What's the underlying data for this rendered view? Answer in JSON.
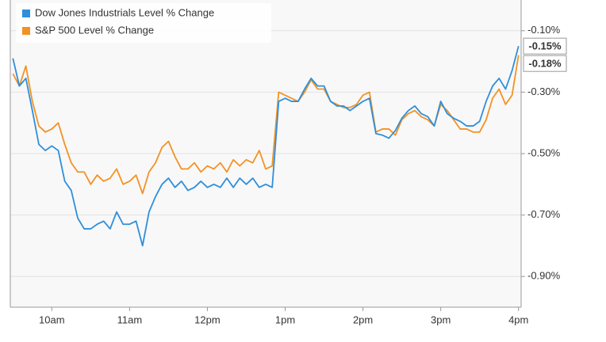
{
  "chart_data": {
    "type": "line",
    "series": [
      {
        "name": "Dow Jones Industrials Level % Change",
        "color": "#2e8fdc",
        "end_label": "-0.15%",
        "values": [
          -0.19,
          -0.28,
          -0.255,
          -0.36,
          -0.47,
          -0.49,
          -0.475,
          -0.49,
          -0.59,
          -0.62,
          -0.71,
          -0.745,
          -0.745,
          -0.73,
          -0.72,
          -0.745,
          -0.69,
          -0.73,
          -0.73,
          -0.72,
          -0.8,
          -0.69,
          -0.64,
          -0.6,
          -0.58,
          -0.61,
          -0.59,
          -0.62,
          -0.61,
          -0.59,
          -0.61,
          -0.6,
          -0.61,
          -0.58,
          -0.61,
          -0.58,
          -0.6,
          -0.58,
          -0.61,
          -0.6,
          -0.61,
          -0.33,
          -0.32,
          -0.33,
          -0.33,
          -0.29,
          -0.255,
          -0.28,
          -0.28,
          -0.33,
          -0.345,
          -0.345,
          -0.36,
          -0.345,
          -0.33,
          -0.32,
          -0.435,
          -0.44,
          -0.45,
          -0.425,
          -0.385,
          -0.36,
          -0.345,
          -0.37,
          -0.38,
          -0.41,
          -0.33,
          -0.37,
          -0.385,
          -0.395,
          -0.41,
          -0.41,
          -0.395,
          -0.33,
          -0.28,
          -0.255,
          -0.29,
          -0.23,
          -0.15
        ]
      },
      {
        "name": "S&P 500 Level % Change",
        "color": "#f39224",
        "end_label": "-0.18%",
        "values": [
          -0.24,
          -0.28,
          -0.215,
          -0.33,
          -0.41,
          -0.43,
          -0.42,
          -0.4,
          -0.47,
          -0.53,
          -0.56,
          -0.56,
          -0.6,
          -0.57,
          -0.59,
          -0.58,
          -0.55,
          -0.6,
          -0.59,
          -0.57,
          -0.63,
          -0.56,
          -0.53,
          -0.48,
          -0.46,
          -0.51,
          -0.55,
          -0.55,
          -0.53,
          -0.56,
          -0.54,
          -0.55,
          -0.53,
          -0.56,
          -0.52,
          -0.54,
          -0.52,
          -0.53,
          -0.49,
          -0.55,
          -0.54,
          -0.3,
          -0.31,
          -0.32,
          -0.33,
          -0.3,
          -0.26,
          -0.29,
          -0.29,
          -0.33,
          -0.34,
          -0.35,
          -0.35,
          -0.34,
          -0.31,
          -0.3,
          -0.43,
          -0.42,
          -0.42,
          -0.44,
          -0.39,
          -0.37,
          -0.36,
          -0.38,
          -0.39,
          -0.41,
          -0.34,
          -0.36,
          -0.39,
          -0.42,
          -0.42,
          -0.43,
          -0.43,
          -0.39,
          -0.32,
          -0.29,
          -0.34,
          -0.31,
          -0.18
        ]
      }
    ],
    "x": [
      570,
      575,
      580,
      585,
      590,
      595,
      600,
      605,
      610,
      615,
      620,
      625,
      630,
      635,
      640,
      645,
      650,
      655,
      660,
      665,
      670,
      675,
      680,
      685,
      690,
      695,
      700,
      705,
      710,
      715,
      720,
      725,
      730,
      735,
      740,
      745,
      750,
      755,
      760,
      765,
      770,
      775,
      780,
      785,
      790,
      795,
      800,
      805,
      810,
      815,
      820,
      825,
      830,
      835,
      840,
      845,
      850,
      855,
      860,
      865,
      870,
      875,
      880,
      885,
      890,
      895,
      900,
      905,
      910,
      915,
      920,
      925,
      930,
      935,
      940,
      945,
      950,
      955,
      960
    ],
    "xlim": [
      568,
      962
    ],
    "xticks": [
      {
        "value": 600,
        "label": "10am"
      },
      {
        "value": 660,
        "label": "11am"
      },
      {
        "value": 720,
        "label": "12pm"
      },
      {
        "value": 780,
        "label": "1pm"
      },
      {
        "value": 840,
        "label": "2pm"
      },
      {
        "value": 900,
        "label": "3pm"
      },
      {
        "value": 960,
        "label": "4pm"
      }
    ],
    "ylim": [
      -1.0,
      0.0
    ],
    "yticks": [
      {
        "value": -0.1,
        "label": "-0.10%"
      },
      {
        "value": -0.3,
        "label": "-0.30%"
      },
      {
        "value": -0.5,
        "label": "-0.50%"
      },
      {
        "value": -0.7,
        "label": "-0.70%"
      },
      {
        "value": -0.9,
        "label": "-0.90%"
      }
    ],
    "grid": true,
    "legend": "top-left"
  }
}
